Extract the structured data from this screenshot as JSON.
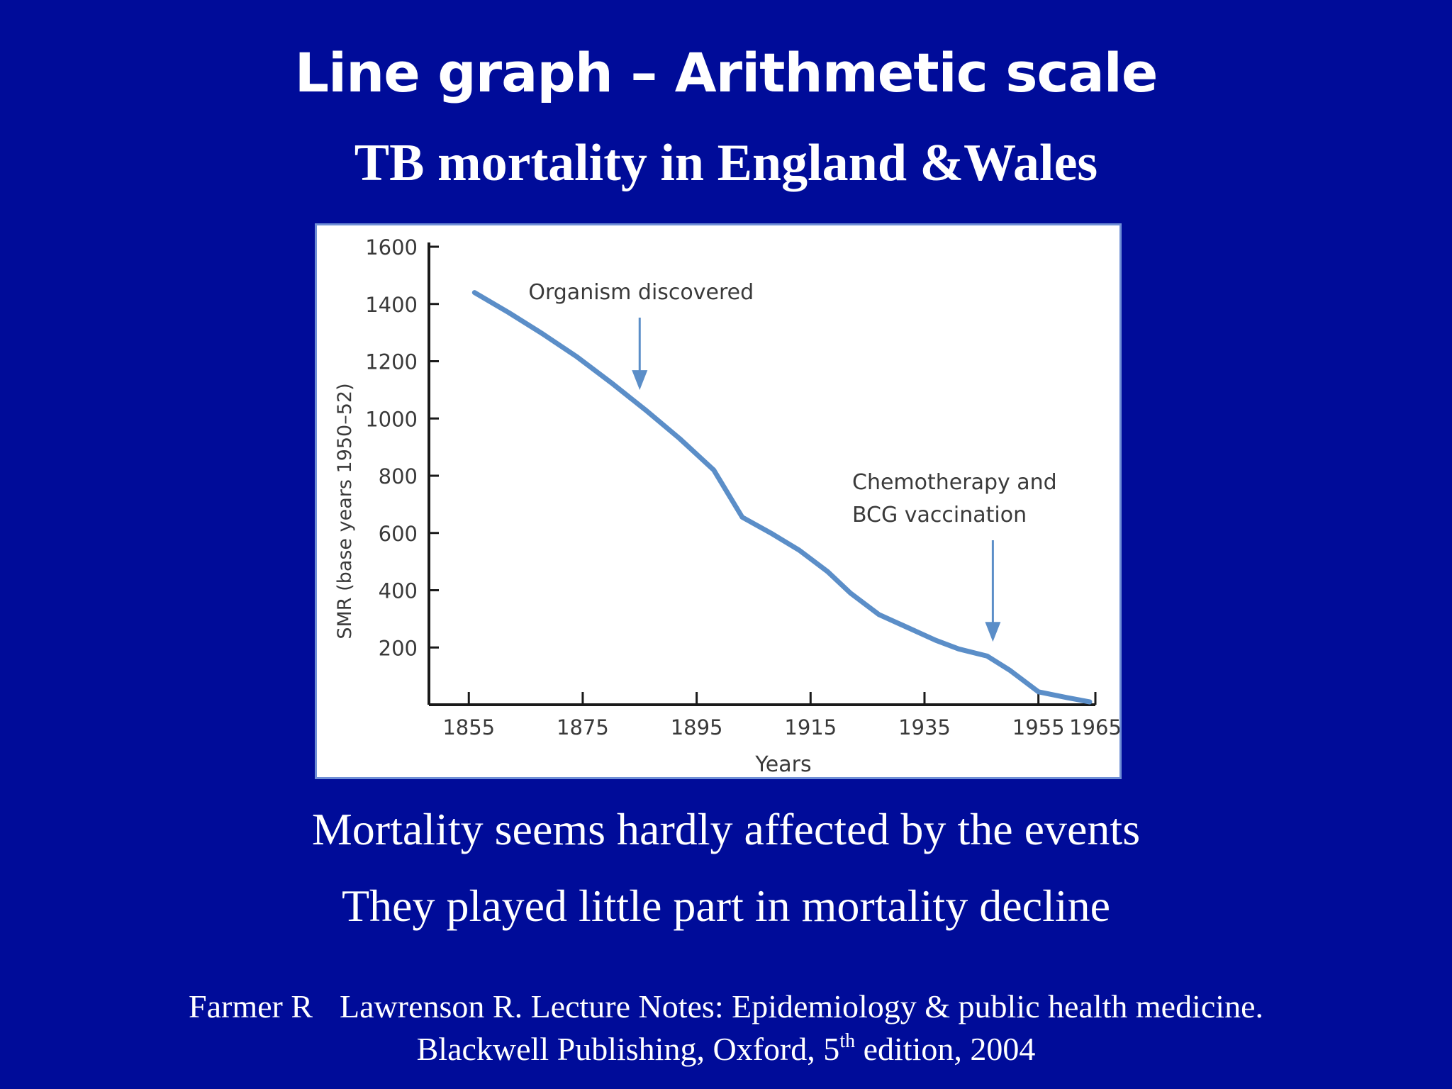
{
  "slide": {
    "title": "Line graph – Arithmetic  scale",
    "subtitle": "TB mortality in England &Wales",
    "line1": "Mortality seems hardly affected by the events",
    "line2": "They played little part in mortality decline",
    "citation": {
      "authors_a": "Farmer R",
      "authors_b": "Lawrenson R. Lecture Notes: Epidemiology & public health medicine.",
      "publisher_a": "Blackwell Publishing, Oxford, 5",
      "publisher_sup": "th",
      "publisher_b": " edition, 2004"
    }
  },
  "chart_data": {
    "type": "line",
    "xlabel": "Years",
    "ylabel": "SMR (base years 1950–52)",
    "xlim": [
      1848,
      1965
    ],
    "ylim": [
      0,
      1600
    ],
    "x_ticks": [
      1855,
      1875,
      1895,
      1915,
      1935,
      1955,
      1965
    ],
    "y_ticks": [
      200,
      400,
      600,
      800,
      1000,
      1200,
      1400,
      1600
    ],
    "line_color": "#5b8ec8",
    "axis_color": "#1a1a1a",
    "series": [
      {
        "x": [
          1856,
          1862,
          1868,
          1874,
          1880,
          1886,
          1892,
          1898,
          1903,
          1908,
          1913,
          1918,
          1922,
          1927,
          1932,
          1937,
          1941,
          1946,
          1950,
          1955,
          1960,
          1964
        ],
        "values": [
          1440,
          1370,
          1295,
          1215,
          1125,
          1030,
          930,
          820,
          655,
          600,
          540,
          465,
          390,
          315,
          270,
          225,
          195,
          170,
          120,
          45,
          25,
          10
        ]
      }
    ],
    "annotations": [
      {
        "text": "Organism discovered",
        "x": 1885,
        "y": 1050
      },
      {
        "text": "Chemotherapy and",
        "text2": "BCG vaccination",
        "x": 1947,
        "y": 200
      }
    ]
  }
}
